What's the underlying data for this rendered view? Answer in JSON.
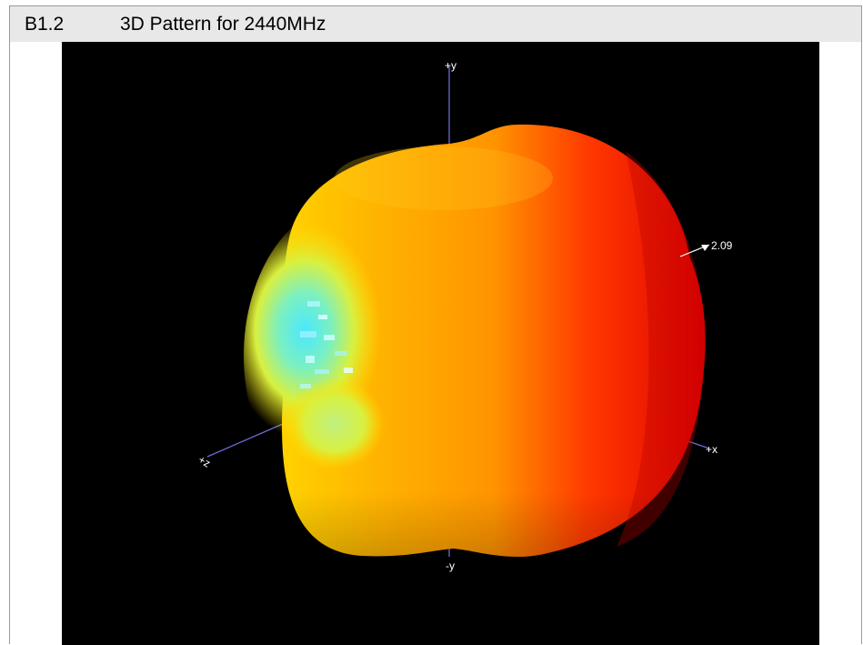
{
  "section": {
    "number": "B1.2",
    "title": "3D Pattern for 2440MHz"
  },
  "plot": {
    "axis_labels": {
      "y_pos": "+y",
      "y_neg": "-y",
      "x_pos": "+x",
      "z_pos": "+z"
    },
    "max_gain_label": "2.09",
    "background": "#000000",
    "colors": {
      "peak": "#e60000",
      "high": "#ff7a00",
      "mid": "#ffdd00",
      "low": "#8cf080",
      "null": "#40e8ff",
      "axis": "#6b6bd6"
    }
  }
}
